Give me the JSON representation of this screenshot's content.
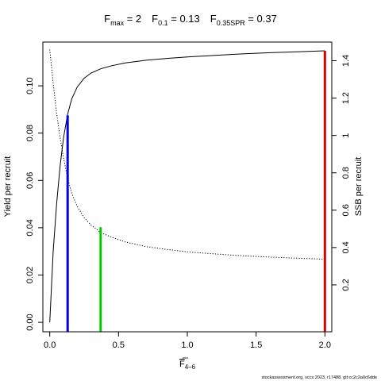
{
  "chart_data": {
    "type": "line",
    "title": {
      "parts": [
        {
          "main": "F",
          "sub": "max",
          "rest": " = 2"
        },
        {
          "main": "F",
          "sub": "0.1",
          "rest": " = 0.13"
        },
        {
          "main": "F",
          "sub": "0.35SPR",
          "rest": " = 0.37"
        }
      ]
    },
    "xlabel": {
      "main": "F",
      "sub": "4–6"
    },
    "ylabel_left": "Yield per recruit",
    "ylabel_right": "SSB per recruit",
    "xlim": [
      -0.05,
      2.05
    ],
    "ylim_left": [
      -0.004,
      0.1185
    ],
    "ylim_right": [
      -0.051,
      1.5
    ],
    "x_ticks": [
      0,
      0.5,
      1,
      1.5,
      2
    ],
    "x_tick_labels": [
      "0.0",
      "0.5",
      "1.0",
      "1.5",
      "2.0"
    ],
    "y_left_ticks": [
      0,
      0.02,
      0.04,
      0.06,
      0.08,
      0.1
    ],
    "y_left_tick_labels": [
      "0.00",
      "0.02",
      "0.04",
      "0.06",
      "0.08",
      "0.10"
    ],
    "y_right_ticks": [
      0.2,
      0.4,
      0.6,
      0.8,
      1,
      1.2,
      1.4
    ],
    "y_right_tick_labels": [
      "0.2",
      "0.4",
      "0.6",
      "0.8",
      "1",
      "1.2",
      "1.4"
    ],
    "series": [
      {
        "style": "solid",
        "axis": "left",
        "x": [
          0,
          0.025,
          0.05,
          0.075,
          0.1,
          0.13,
          0.16,
          0.2,
          0.25,
          0.3,
          0.37,
          0.45,
          0.55,
          0.7,
          0.85,
          1.0,
          1.2,
          1.4,
          1.6,
          1.8,
          2.0
        ],
        "y": [
          0,
          0.03,
          0.05,
          0.066,
          0.078,
          0.088,
          0.0945,
          0.0995,
          0.1032,
          0.1054,
          0.1072,
          0.1085,
          0.1097,
          0.1108,
          0.1116,
          0.1122,
          0.1129,
          0.1135,
          0.114,
          0.1144,
          0.1148
        ]
      },
      {
        "style": "dotted",
        "axis": "right",
        "x": [
          0,
          0.025,
          0.05,
          0.075,
          0.1,
          0.13,
          0.16,
          0.2,
          0.25,
          0.3,
          0.37,
          0.45,
          0.55,
          0.7,
          0.85,
          1.0,
          1.2,
          1.4,
          1.6,
          1.8,
          2.0
        ],
        "y": [
          1.46,
          1.28,
          1.12,
          0.99,
          0.88,
          0.77,
          0.69,
          0.62,
          0.56,
          0.52,
          0.48,
          0.455,
          0.43,
          0.405,
          0.39,
          0.377,
          0.366,
          0.356,
          0.349,
          0.343,
          0.338
        ]
      }
    ],
    "reference_lines": [
      {
        "name": "F0.1",
        "x": 0.13,
        "y": 0.0875,
        "color": "#0000ee"
      },
      {
        "name": "F0.35SPR",
        "x": 0.37,
        "y": 0.0402,
        "color": "#00cc00"
      },
      {
        "name": "Fmax",
        "x": 2.0,
        "y": 0.1148,
        "color": "#dd0000"
      }
    ],
    "grid": false,
    "legend": "none"
  },
  "footer": "stockassessment.org, sccs:2023, r17488, git:cc2c2a0c6dde"
}
